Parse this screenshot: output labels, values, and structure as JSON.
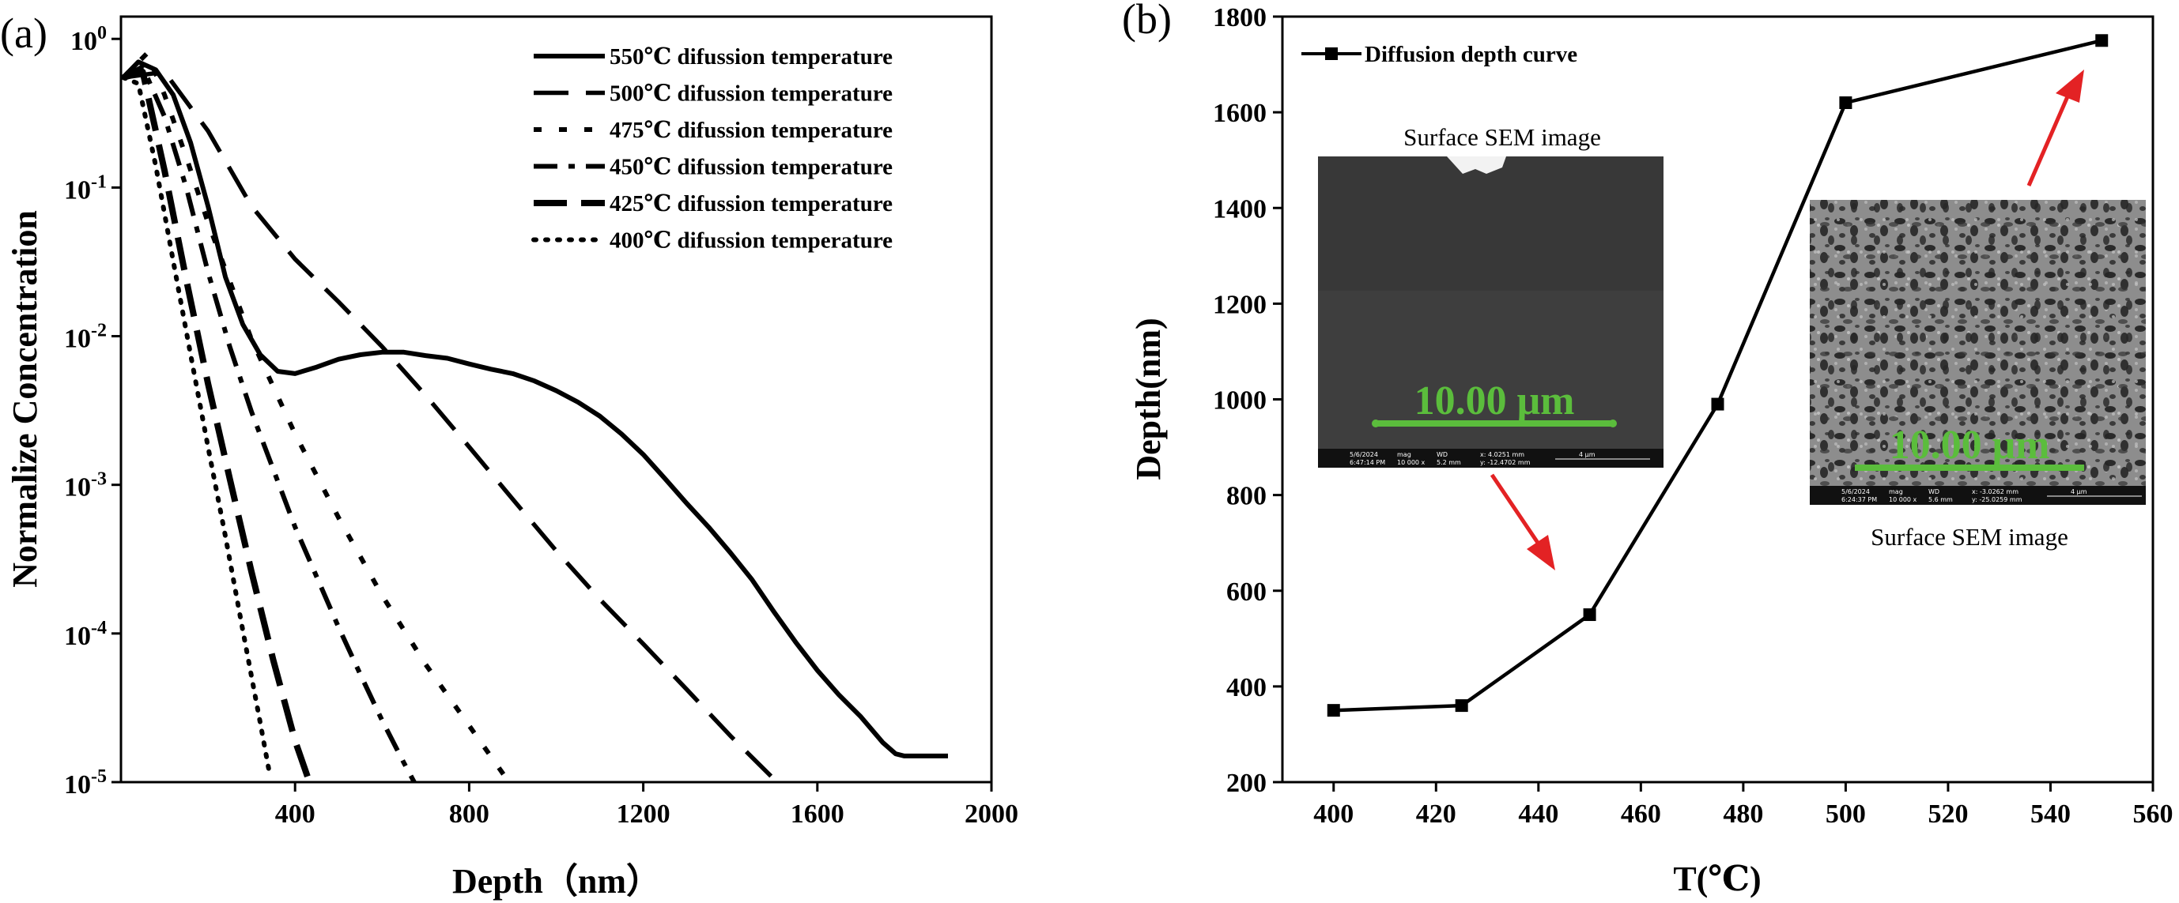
{
  "chart_data": [
    {
      "panel_label": "(a)",
      "type": "line",
      "xlabel": "Depth（nm）",
      "ylabel": "Normalize Concentration",
      "xlim": [
        0,
        2000
      ],
      "ylim_log10": [
        -5,
        0.15
      ],
      "yscale": "log",
      "xticks": [
        400,
        800,
        1200,
        1600,
        2000
      ],
      "yticks": [
        {
          "base": "10",
          "exp": "0"
        },
        {
          "base": "10",
          "exp": "-1"
        },
        {
          "base": "10",
          "exp": "-2"
        },
        {
          "base": "10",
          "exp": "-3"
        },
        {
          "base": "10",
          "exp": "-4"
        },
        {
          "base": "10",
          "exp": "-5"
        }
      ],
      "legend_position": "top-right",
      "series": [
        {
          "name": "550℃ difussion temperature",
          "dash": "solid",
          "x": [
            5,
            40,
            80,
            120,
            160,
            200,
            240,
            280,
            320,
            360,
            400,
            450,
            500,
            550,
            600,
            650,
            700,
            750,
            800,
            850,
            900,
            950,
            1000,
            1050,
            1100,
            1150,
            1200,
            1250,
            1300,
            1350,
            1400,
            1450,
            1500,
            1550,
            1600,
            1650,
            1700,
            1750,
            1780,
            1800,
            1850,
            1900
          ],
          "y": [
            0.55,
            0.7,
            0.62,
            0.42,
            0.2,
            0.075,
            0.025,
            0.012,
            0.0075,
            0.0058,
            0.0056,
            0.0062,
            0.007,
            0.0075,
            0.0078,
            0.0078,
            0.0074,
            0.0071,
            0.0065,
            0.006,
            0.0056,
            0.005,
            0.0043,
            0.0036,
            0.0029,
            0.0022,
            0.0016,
            0.0011,
            0.00075,
            0.00052,
            0.00035,
            0.00023,
            0.00014,
            8.75e-05,
            5.65e-05,
            3.85e-05,
            2.75e-05,
            1.85e-05,
            1.55e-05,
            1.5e-05,
            1.5e-05,
            1.5e-05
          ]
        },
        {
          "name": "500℃ difussion temperature",
          "dash": "long-dash",
          "x": [
            5,
            100,
            200,
            300,
            400,
            500,
            600,
            700,
            800,
            900,
            1000,
            1100,
            1200,
            1300,
            1400,
            1500,
            1530
          ],
          "y": [
            0.55,
            0.6,
            0.24,
            0.075,
            0.033,
            0.017,
            0.0085,
            0.004,
            0.0018,
            0.0008,
            0.00036,
            0.00017,
            8.5e-05,
            4.2e-05,
            2.05e-05,
            1.05e-05,
            8.5e-06
          ]
        },
        {
          "name": "475℃ difussion temperature",
          "dash": "short-dash",
          "x": [
            5,
            60,
            100,
            150,
            200,
            300,
            400,
            500,
            600,
            700,
            800,
            900,
            1000
          ],
          "y": [
            0.55,
            0.8,
            0.42,
            0.16,
            0.058,
            0.0095,
            0.0022,
            0.0006,
            0.00018,
            6.2e-05,
            2.4e-05,
            9.2e-06,
            5.2e-06
          ]
        },
        {
          "name": "450℃ difussion temperature",
          "dash": "dash-dot",
          "x": [
            5,
            50,
            100,
            150,
            200,
            250,
            300,
            400,
            500,
            550,
            600,
            650,
            700
          ],
          "y": [
            0.55,
            0.65,
            0.3,
            0.1,
            0.027,
            0.0085,
            0.0031,
            0.00052,
            0.00011,
            5.3e-05,
            2.6e-05,
            1.35e-05,
            7.2e-06
          ]
        },
        {
          "name": "425℃ difussion temperature",
          "dash": "long-dash-thick",
          "x": [
            5,
            50,
            100,
            150,
            200,
            250,
            300,
            350,
            400,
            450
          ],
          "y": [
            0.55,
            0.6,
            0.13,
            0.024,
            0.0048,
            0.0011,
            0.00026,
            6.6e-05,
            1.9e-05,
            7.2e-06
          ]
        },
        {
          "name": "400℃ difussion temperature",
          "dash": "dotted",
          "x": [
            5,
            40,
            80,
            120,
            160,
            200,
            240,
            280,
            320,
            340
          ],
          "y": [
            0.55,
            0.5,
            0.14,
            0.032,
            0.0075,
            0.0018,
            0.00045,
            0.000105,
            2.5e-05,
            1.2e-05
          ]
        }
      ]
    },
    {
      "panel_label": "(b)",
      "type": "line",
      "xlabel": "T(℃)",
      "ylabel": "Depth(nm)",
      "xlim": [
        390,
        560
      ],
      "ylim": [
        200,
        1800
      ],
      "xticks": [
        400,
        420,
        440,
        460,
        480,
        500,
        520,
        540,
        560
      ],
      "yticks": [
        200,
        400,
        600,
        800,
        1000,
        1200,
        1400,
        1600,
        1800
      ],
      "legend_position": "top-left",
      "series": [
        {
          "name": "Diffusion depth curve",
          "marker": "square",
          "x": [
            400,
            425,
            450,
            475,
            500,
            550
          ],
          "y": [
            350,
            360,
            550,
            990,
            1620,
            1750
          ]
        }
      ],
      "insets": [
        {
          "caption": "Surface SEM image",
          "scale_bar": "10.00 μm",
          "info_bar": [
            "5/6/2024",
            "6:47:14 PM",
            "mag",
            "10 000 x",
            "WD",
            "5.2 mm",
            "x: 4.0251 mm",
            "y: -12.4702 mm",
            "4 μm"
          ]
        },
        {
          "caption": "Surface SEM image",
          "scale_bar": "10.00 μm",
          "info_bar": [
            "5/6/2024",
            "6:24:37 PM",
            "mag",
            "10 000 x",
            "WD",
            "5.6 mm",
            "x: -3.0262 mm",
            "y: -25.0259 mm",
            "4 μm"
          ]
        }
      ]
    }
  ],
  "colors": {
    "ink": "#000000",
    "arrow": "#e32224",
    "scale_bar": "#5bbd3c",
    "sem_dark": "#3c3c3c",
    "sem_texture": "#8b8b8b"
  }
}
